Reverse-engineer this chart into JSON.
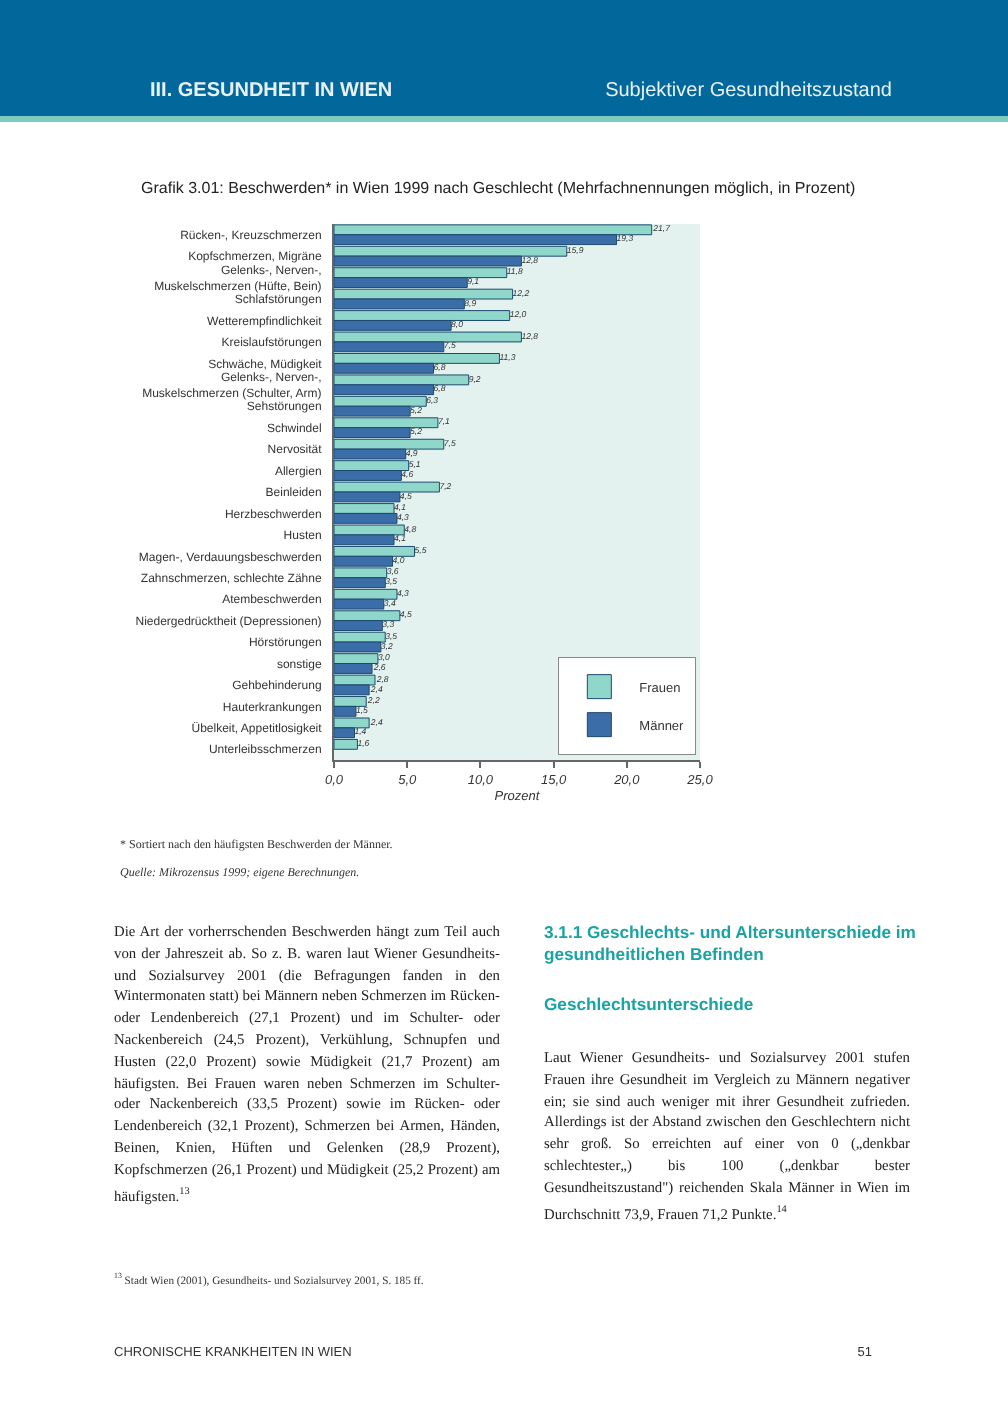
{
  "chart_data": {
    "type": "bar",
    "orientation": "horizontal",
    "title": "Grafik 3.01: Beschwerden* in Wien 1999 nach Geschlecht (Mehrfachnennungen möglich, in Prozent)",
    "xlabel": "Prozent",
    "categories": [
      "Rücken-, Kreuzschmerzen",
      "Kopfschmerzen, Migräne",
      "Gelenks-, Nerven-, Muskelschmerzen (Hüfte, Bein)",
      "Schlafstörungen",
      "Wetterempfindlichkeit",
      "Kreislaufstörungen",
      "Schwäche, Müdigkeit",
      "Gelenks-, Nerven-, Muskelschmerzen (Schulter, Arm)",
      "Sehstörungen",
      "Schwindel",
      "Nervosität",
      "Allergien",
      "Beinleiden",
      "Herzbeschwerden",
      "Husten",
      "Magen-, Verdauungsbeschwerden",
      "Zahnschmerzen, schlechte Zähne",
      "Atembeschwerden",
      "Niedergedrücktheit (Depressionen)",
      "Hörstörungen",
      "sonstige",
      "Gehbehinderung",
      "Hauterkrankungen",
      "Übelkeit, Appetitlosigkeit",
      "Unterleibsschmerzen"
    ],
    "series": [
      {
        "name": "Frauen",
        "color": "#8fd6cb",
        "values": [
          21.7,
          15.9,
          11.8,
          12.2,
          12.0,
          12.8,
          11.3,
          9.2,
          6.3,
          7.1,
          7.5,
          5.1,
          7.2,
          4.1,
          4.8,
          5.5,
          3.6,
          4.3,
          4.5,
          3.5,
          3.0,
          2.8,
          2.2,
          2.4,
          1.6
        ],
        "value_labels": [
          "21,7",
          "15,9",
          "11,8",
          "12,2",
          "12,0",
          "12,8",
          "11,3",
          "9,2",
          "6,3",
          "7,1",
          "7,5",
          "5,1",
          "7,2",
          "4,1",
          "4,8",
          "5,5",
          "3,6",
          "4,3",
          "4,5",
          "3,5",
          "3,0",
          "2,8",
          "2,2",
          "2,4",
          "1,6"
        ]
      },
      {
        "name": "Männer",
        "color": "#3b6ea8",
        "values": [
          19.3,
          12.8,
          9.1,
          8.9,
          8.0,
          7.5,
          6.8,
          6.8,
          5.2,
          5.2,
          4.9,
          4.6,
          4.5,
          4.3,
          4.1,
          4.0,
          3.5,
          3.4,
          3.3,
          3.2,
          2.6,
          2.4,
          1.5,
          1.4,
          null
        ],
        "value_labels": [
          "19,3",
          "12,8",
          "9,1",
          "8,9",
          "8,0",
          "7,5",
          "6,8",
          "6,8",
          "5,2",
          "5,2",
          "4,9",
          "4,6",
          "4,5",
          "4,3",
          "4,1",
          "4,0",
          "3,5",
          "3,4",
          "3,3",
          "3,2",
          "2,6",
          "2,4",
          "1,5",
          "1,4",
          null
        ]
      }
    ],
    "xlim": [
      0,
      25
    ],
    "xticks": [
      {
        "value": 0,
        "label": "0,0"
      },
      {
        "value": 5,
        "label": "5,0"
      },
      {
        "value": 10,
        "label": "10,0"
      },
      {
        "value": 15,
        "label": "15,0"
      },
      {
        "value": 20,
        "label": "20,0"
      },
      {
        "value": 25,
        "label": "25,0"
      }
    ],
    "legend": "bottom right",
    "grid": false,
    "annotations": [
      "III. GESUNDHEIT IN WIEN",
      "Subjektiver Gesundheitszustand",
      "*   Sortiert nach den häufigsten Beschwerden der Männer.",
      "Quelle: Mikrozensus 1999; eigene Berechnungen.",
      "Die Art der vorherrschenden Beschwerden hängt zum Teil auch von der Jahreszeit ab. So z. B. waren laut Wiener Gesundheits- und Sozialsurvey 2001 (die Befragungen fanden in den Wintermonaten statt) bei Männern neben Schmerzen im Rücken- oder Lendenbereich (27,1 Prozent) und im Schulter- oder Nackenbereich (24,5 Prozent), Verkühlung, Schnupfen und Husten (22,0 Prozent) sowie Müdigkeit (21,7 Prozent) am häufigsten. Bei Frauen waren neben Schmerzen im Schulter- oder Nackenbereich (33,5 Prozent) sowie im Rücken- oder Lendenbereich (32,1 Prozent), Schmerzen bei Armen, Händen, Beinen, Knien, Hüften und Gelenken (28,9 Prozent), Kopfschmerzen (26,1 Prozent) und Müdigkeit (25,2 Prozent) am häufigsten.$^{13}$",
      "3.1.1 Geschlechts- und Altersunterschiede im gesundheitlichen Befinden",
      "Geschlechtsunterschiede",
      "Laut Wiener Gesundheits- und Sozialsurvey 2001 stufen Frauen ihre Gesundheit im Vergleich zu Männern negativer ein; sie sind auch weniger mit ihrer Gesundheit zufrieden. Allerdings ist der Abstand zwischen den Geschlechtern nicht sehr groß. So erreichten auf einer von 0 („denkbar schlechtester„) bis 100 („denkbar bester Gesundheitszustand\") reichenden Skala Männer in Wien im Durchschnitt 73,9, Frauen 71,2 Punkte.$^{14}$",
      "$^{13}$   Stadt Wien (2001), Gesundheits- und Sozialsurvey 2001, S. 185 ff.",
      "CHRONISCHE KRANKHEITEN IN WIEN",
      "51"
    ]
  }
}
